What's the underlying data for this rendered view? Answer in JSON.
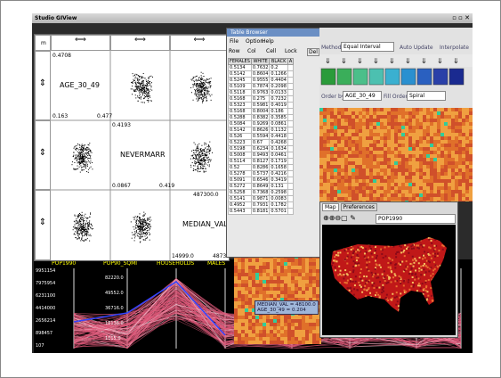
{
  "window": {
    "title": "Studio GIView"
  },
  "scatter_matrix": {
    "header": "m",
    "variables": [
      "AGE_30_49",
      "NEVERMARR",
      "MEDIAN_VAL"
    ],
    "corner_labels": [
      "0.4708",
      "0.163",
      "0.477",
      "0.4193",
      "0.0867",
      "0.419",
      "487300.0",
      "14999.0",
      "4873"
    ]
  },
  "table_browser": {
    "title": "Table Browser",
    "menu": [
      "File",
      "Option",
      "Help"
    ],
    "toggles": [
      "Row",
      "Col",
      "Cell",
      "Lock"
    ],
    "button": "Del",
    "columns": [
      "FEMALES",
      "WHITE",
      "BLACK",
      "A"
    ],
    "rows": [
      [
        "0.5134",
        "0.7632",
        "0.2"
      ],
      [
        "0.5142",
        "0.8604",
        "0.1266"
      ],
      [
        "0.5245",
        "0.9555",
        "0.4404"
      ],
      [
        "0.5109",
        "0.7874",
        "0.2098"
      ],
      [
        "0.5118",
        "0.9763",
        "0.0133"
      ],
      [
        "0.5168",
        "0.275",
        "0.7232"
      ],
      [
        "0.5323",
        "0.5981",
        "0.4019"
      ],
      [
        "0.5168",
        "0.8004",
        "0.186"
      ],
      [
        "0.5288",
        "0.8382",
        "0.3585"
      ],
      [
        "0.5084",
        "0.9269",
        "0.0861"
      ],
      [
        "0.5142",
        "0.8626",
        "0.1132"
      ],
      [
        "0.526",
        "0.5594",
        "0.4418"
      ],
      [
        "0.5223",
        "0.67",
        "0.4268"
      ],
      [
        "0.5198",
        "0.6234",
        "0.1634"
      ],
      [
        "0.5008",
        "0.9493",
        "0.0461"
      ],
      [
        "0.5114",
        "0.8127",
        "0.1719"
      ],
      [
        "0.52",
        "0.8286",
        "0.1658"
      ],
      [
        "0.5278",
        "0.5737",
        "0.4216"
      ],
      [
        "0.5091",
        "0.6546",
        "0.3419"
      ],
      [
        "0.5272",
        "0.8649",
        "0.131"
      ],
      [
        "0.5258",
        "0.7368",
        "0.2598"
      ],
      [
        "0.5141",
        "0.9871",
        "0.0083"
      ],
      [
        "0.4952",
        "0.7931",
        "0.1782"
      ],
      [
        "0.5443",
        "0.8181",
        "0.5701"
      ]
    ]
  },
  "classifier": {
    "method_label": "Method:",
    "method": "Equal Interval",
    "auto_update": "Auto Update",
    "interpolate": "Interpolate",
    "order_label": "Order by:",
    "order": "AGE_30_49",
    "fill_label": "Fill Order:",
    "fill": "Spiral"
  },
  "map": {
    "tabs": [
      "Map",
      "Preferences"
    ],
    "variable": "POP1990"
  },
  "parallel": {
    "axes": [
      "POP1990",
      "POP90_SQMI",
      "HOUSEHOLDS",
      "MALES"
    ],
    "pop_ticks": [
      "9951154",
      "7975954",
      "6231100",
      "4414000",
      "2656214",
      "898457",
      "107"
    ],
    "household_ticks": [
      "82220.0",
      "49552.0",
      "36716.0",
      "18136.0",
      "1015.0"
    ]
  },
  "tooltip": [
    "MEDIAN_VAL = 48100.0",
    "AGE_30_49 = 0.204"
  ]
}
